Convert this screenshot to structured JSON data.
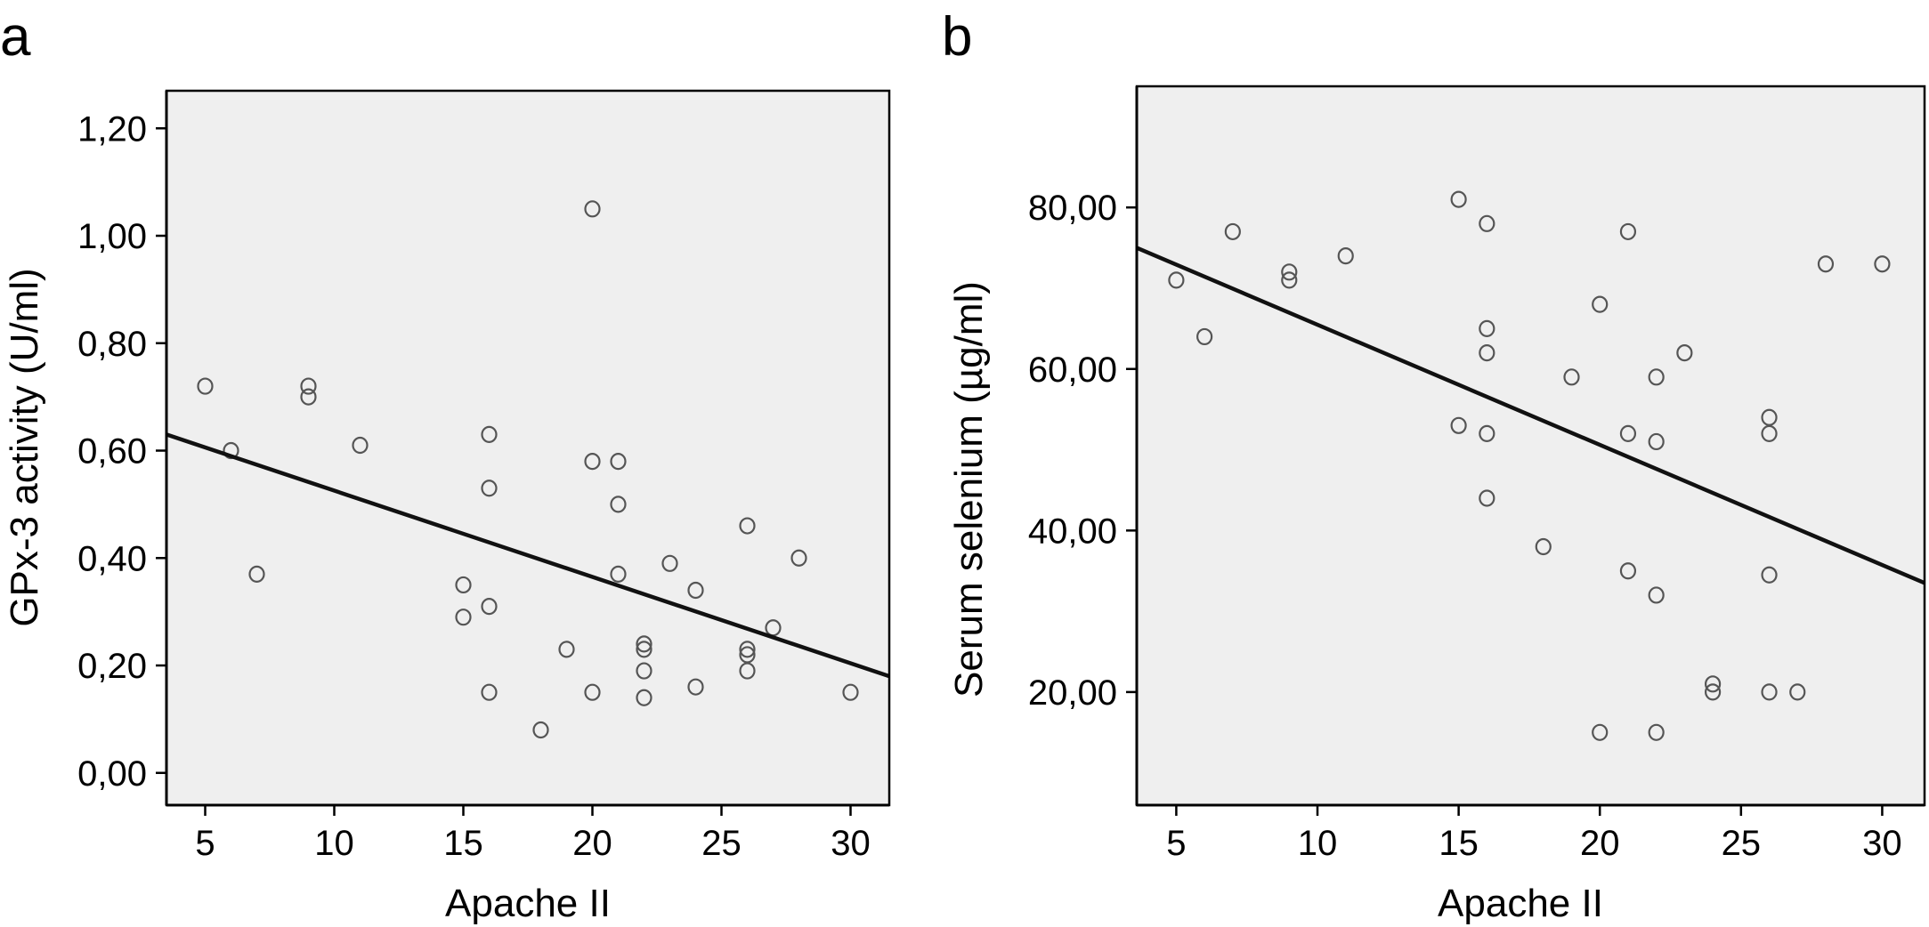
{
  "figure": {
    "panels": [
      {
        "letter": "a",
        "xlabel": "Apache II",
        "ylabel": "GPx-3 activity (U/ml)"
      },
      {
        "letter": "b",
        "xlabel": "Apache II",
        "ylabel": "Serum selenium (µg/ml)"
      }
    ]
  },
  "colors": {
    "plot_background": "#efefef",
    "axis": "#000000",
    "marker_stroke": "#555555",
    "fit_line": "#111111"
  },
  "chart_data": [
    {
      "type": "scatter",
      "panel": "a",
      "title": "",
      "xlabel": "Apache II",
      "ylabel": "GPx-3 activity (U/ml)",
      "xlim": [
        3.5,
        31.5
      ],
      "ylim": [
        -0.06,
        1.27
      ],
      "x_ticks": [
        5,
        10,
        15,
        20,
        25,
        30
      ],
      "x_tick_labels": [
        "5",
        "10",
        "15",
        "20",
        "25",
        "30"
      ],
      "y_ticks": [
        0,
        0.2,
        0.4,
        0.6,
        0.8,
        1.0,
        1.2
      ],
      "y_tick_labels": [
        "0,00",
        "0,20",
        "0,40",
        "0,60",
        "0,80",
        "1,00",
        "1,20"
      ],
      "grid": false,
      "legend": "none",
      "points": [
        [
          5,
          0.72
        ],
        [
          6,
          0.6
        ],
        [
          7,
          0.37
        ],
        [
          9,
          0.72
        ],
        [
          9,
          0.7
        ],
        [
          11,
          0.61
        ],
        [
          15,
          0.35
        ],
        [
          15,
          0.29
        ],
        [
          16,
          0.63
        ],
        [
          16,
          0.53
        ],
        [
          16,
          0.31
        ],
        [
          16,
          0.15
        ],
        [
          18,
          0.08
        ],
        [
          19,
          0.23
        ],
        [
          20,
          1.05
        ],
        [
          20,
          0.58
        ],
        [
          20,
          0.15
        ],
        [
          21,
          0.58
        ],
        [
          21,
          0.5
        ],
        [
          21,
          0.37
        ],
        [
          22,
          0.24
        ],
        [
          22,
          0.23
        ],
        [
          22,
          0.19
        ],
        [
          22,
          0.14
        ],
        [
          23,
          0.39
        ],
        [
          24,
          0.34
        ],
        [
          24,
          0.16
        ],
        [
          26,
          0.46
        ],
        [
          26,
          0.23
        ],
        [
          26,
          0.22
        ],
        [
          26,
          0.19
        ],
        [
          27,
          0.27
        ],
        [
          28,
          0.4
        ],
        [
          30,
          0.15
        ]
      ],
      "fit_line": {
        "x": [
          3.5,
          31.5
        ],
        "y": [
          0.63,
          0.18
        ]
      }
    },
    {
      "type": "scatter",
      "panel": "b",
      "title": "",
      "xlabel": "Apache II",
      "ylabel": "Serum selenium (µg/ml)",
      "xlim": [
        3.6,
        31.5
      ],
      "ylim": [
        6.0,
        95.0
      ],
      "x_ticks": [
        5,
        10,
        15,
        20,
        25,
        30
      ],
      "x_tick_labels": [
        "5",
        "10",
        "15",
        "20",
        "25",
        "30"
      ],
      "y_ticks": [
        20,
        40,
        60,
        80
      ],
      "y_tick_labels": [
        "20,00",
        "40,00",
        "60,00",
        "80,00"
      ],
      "grid": false,
      "legend": "none",
      "points": [
        [
          5,
          71
        ],
        [
          6,
          64
        ],
        [
          7,
          77
        ],
        [
          9,
          72
        ],
        [
          9,
          71
        ],
        [
          11,
          74
        ],
        [
          15,
          81
        ],
        [
          15,
          53
        ],
        [
          16,
          78
        ],
        [
          16,
          65
        ],
        [
          16,
          62
        ],
        [
          16,
          52
        ],
        [
          16,
          44
        ],
        [
          18,
          38
        ],
        [
          19,
          59
        ],
        [
          20,
          68
        ],
        [
          20,
          15
        ],
        [
          21,
          77
        ],
        [
          21,
          52
        ],
        [
          21,
          35
        ],
        [
          22,
          59
        ],
        [
          22,
          51
        ],
        [
          22,
          32
        ],
        [
          22,
          15
        ],
        [
          23,
          62
        ],
        [
          24,
          21
        ],
        [
          24,
          20
        ],
        [
          26,
          54
        ],
        [
          26,
          52
        ],
        [
          26,
          34.5
        ],
        [
          26,
          20
        ],
        [
          27,
          20
        ],
        [
          28,
          73
        ],
        [
          30,
          73
        ]
      ],
      "fit_line": {
        "x": [
          3.6,
          31.5
        ],
        "y": [
          75.0,
          33.5
        ]
      }
    }
  ]
}
